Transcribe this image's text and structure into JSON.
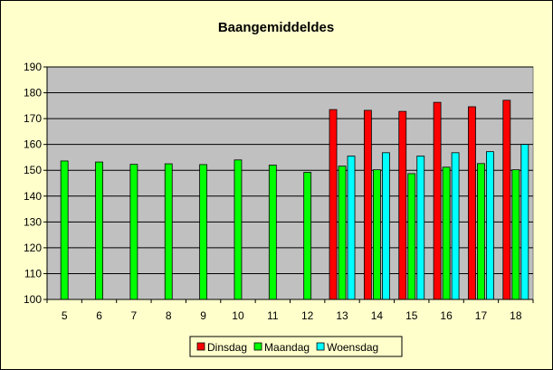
{
  "chart_data": {
    "type": "bar",
    "title": "Baangemiddeldes",
    "categories": [
      "5",
      "6",
      "7",
      "8",
      "9",
      "10",
      "11",
      "12",
      "13",
      "14",
      "15",
      "16",
      "17",
      "18"
    ],
    "ylim": [
      100,
      190
    ],
    "yticks": [
      "100",
      "110",
      "120",
      "130",
      "140",
      "150",
      "160",
      "170",
      "180",
      "190"
    ],
    "grid": true,
    "legend_position": "bottom",
    "series": [
      {
        "name": "Dinsdag",
        "color": "#ff0000",
        "values": [
          null,
          null,
          null,
          null,
          null,
          null,
          null,
          null,
          173.5,
          173.2,
          172.8,
          176.3,
          174.6,
          177.1
        ]
      },
      {
        "name": "Maandag",
        "color": "#00ff00",
        "values": [
          153.6,
          153.2,
          152.3,
          152.5,
          152.2,
          154.0,
          152.0,
          149.2,
          151.6,
          150.2,
          148.7,
          151.2,
          152.6,
          150.2
        ]
      },
      {
        "name": "Woensdag",
        "color": "#00ffff",
        "values": [
          null,
          null,
          null,
          null,
          null,
          null,
          null,
          null,
          155.5,
          156.8,
          155.5,
          156.8,
          157.2,
          160.0
        ]
      }
    ]
  }
}
